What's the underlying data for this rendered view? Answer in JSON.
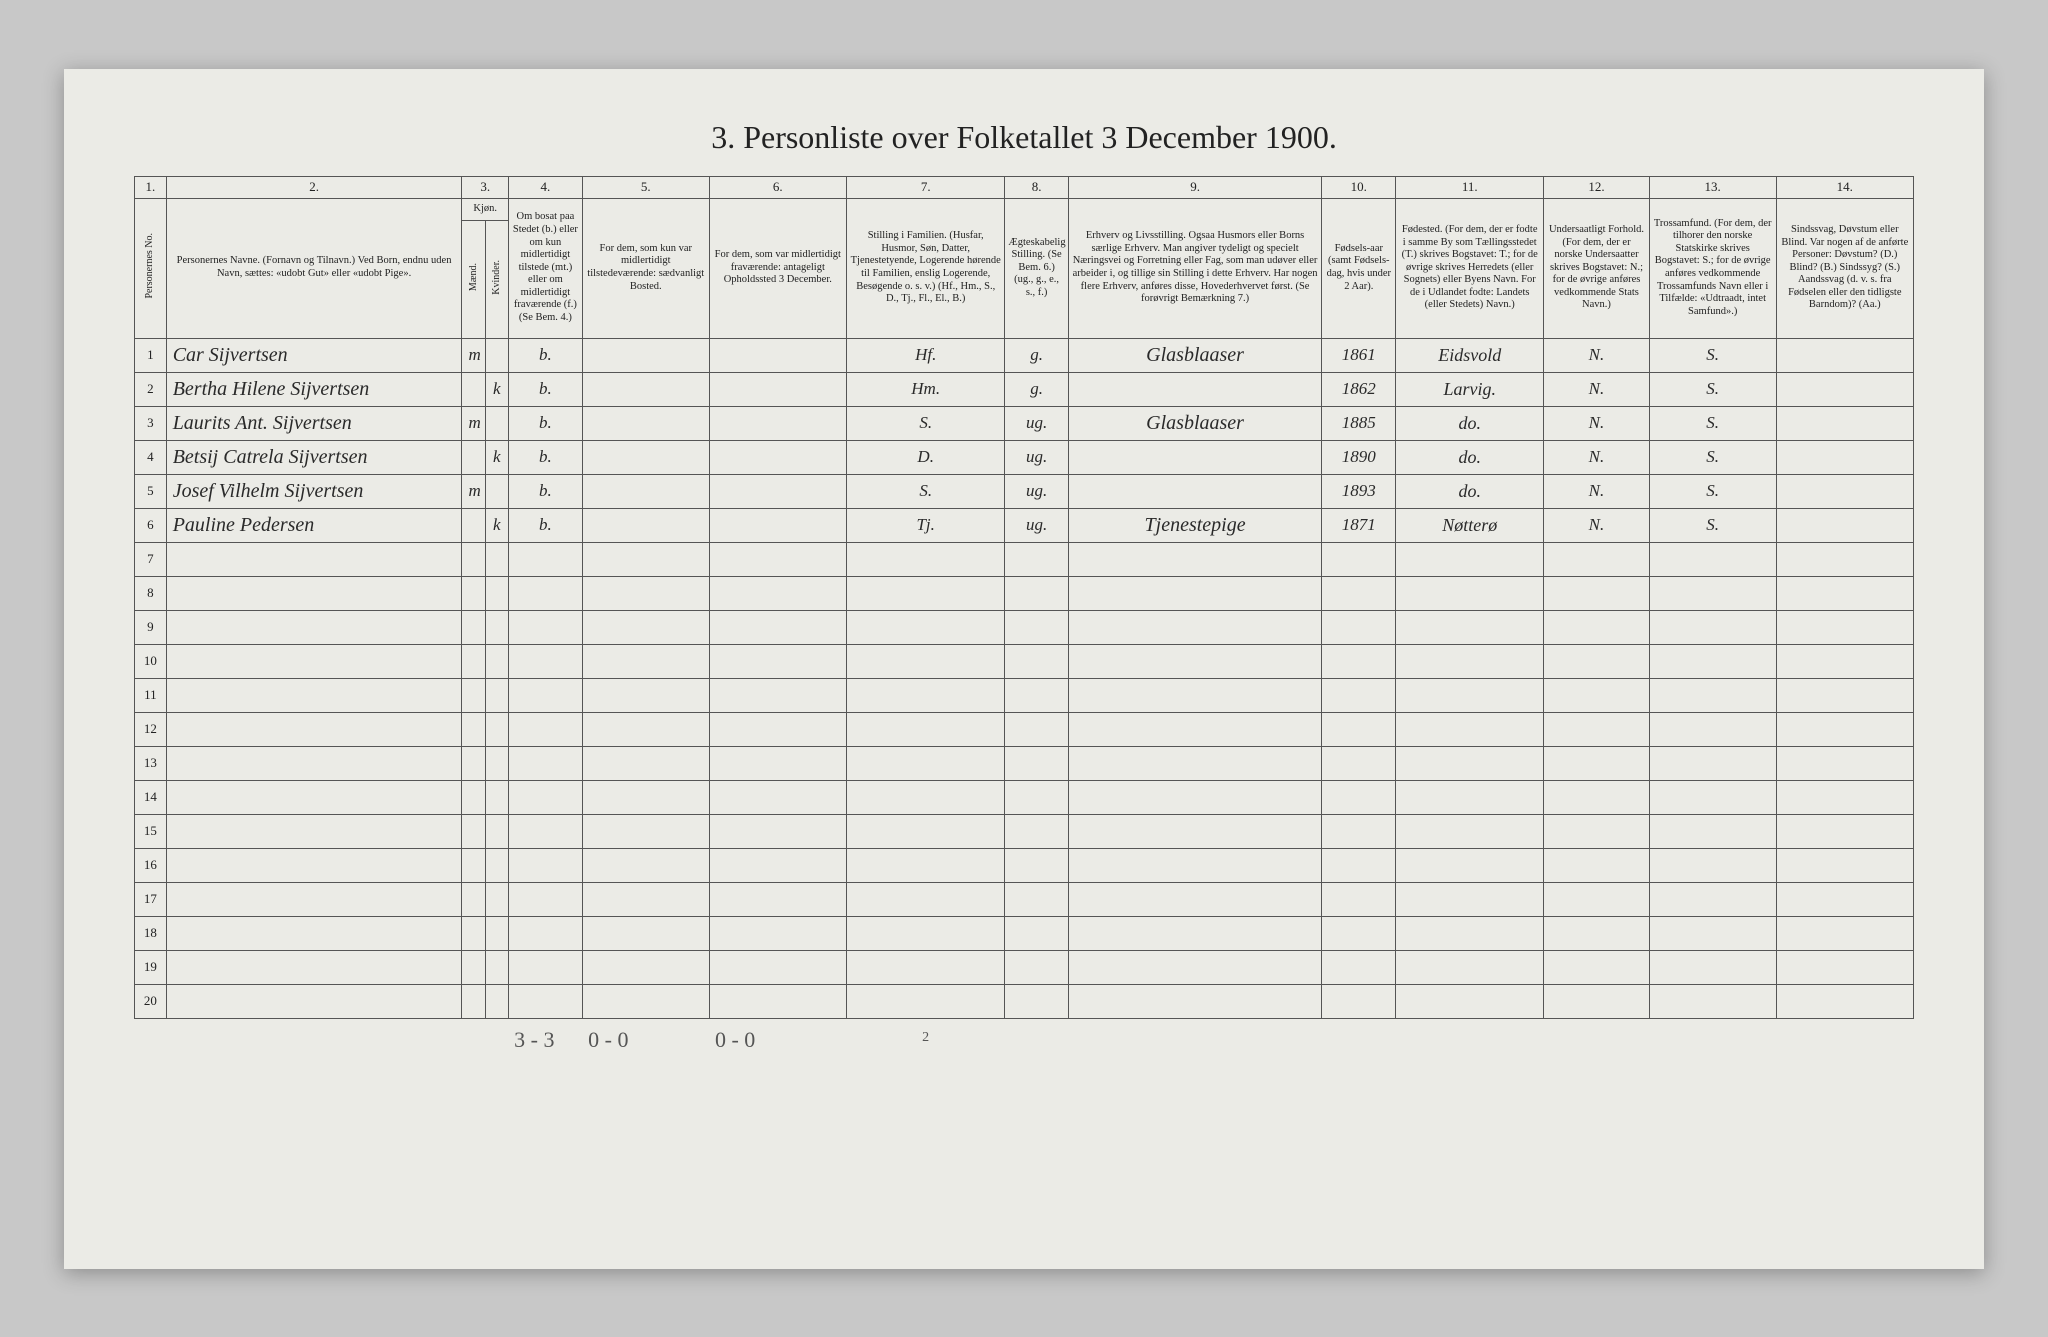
{
  "title": "3. Personliste over Folketallet 3 December 1900.",
  "page_number": "2",
  "footer_tallies": [
    "3 - 3",
    "0 - 0",
    "0 - 0"
  ],
  "column_numbers": [
    "1.",
    "2.",
    "3.",
    "4.",
    "5.",
    "6.",
    "7.",
    "8.",
    "9.",
    "10.",
    "11.",
    "12.",
    "13.",
    "14."
  ],
  "headers": {
    "person_no": "Personernes No.",
    "name": "Personernes Navne.\n(Fornavn og Tilnavn.)\nVed Born, endnu uden Navn, sættes: «udobt Gut» eller «udobt Pige».",
    "sex": "Kjøn.",
    "sex_m": "Mænd.",
    "sex_k": "Kvinder.",
    "resident": "Om bosat paa Stedet (b.) eller om kun midlertidigt tilstede (mt.) eller om midlertidigt fraværende (f.) (Se Bem. 4.)",
    "temp_present": "For dem, som kun var midlertidigt tilstedeværende:\nsædvanligt Bosted.",
    "temp_absent": "For dem, som var midlertidigt fraværende:\nantageligt Opholdssted 3 December.",
    "position": "Stilling i Familien.\n(Husfar, Husmor, Søn, Datter, Tjenestetyende, Logerende hørende til Familien, enslig Logerende, Besøgende o. s. v.)\n(Hf., Hm., S., D., Tj., Fl., El., B.)",
    "marital": "Ægteskabelig Stilling.\n(Se Bem. 6.)\n(ug., g., e., s., f.)",
    "occupation": "Erhverv og Livsstilling.\nOgsaa Husmors eller Borns særlige Erhverv. Man angiver tydeligt og specielt Næringsvei og Forretning eller Fag, som man udøver eller arbeider i, og tillige sin Stilling i dette Erhverv.\nHar nogen flere Erhverv, anføres disse, Hovederhvervet først.\n(Se forøvrigt Bemærkning 7.)",
    "birthyear": "Fødsels-aar\n(samt Fødsels-dag, hvis under 2 Aar).",
    "birthplace": "Fødested.\n(For dem, der er fodte i samme By som Tællingsstedet (T.) skrives Bogstavet: T.; for de øvrige skrives Herredets (eller Sognets) eller Byens Navn. For de i Udlandet fodte: Landets (eller Stedets) Navn.)",
    "nationality": "Undersaatligt Forhold.\n(For dem, der er norske Undersaatter skrives Bogstavet: N.; for de øvrige anføres vedkommende Stats Navn.)",
    "religion": "Trossamfund.\n(For dem, der tilhorer den norske Statskirke skrives Bogstavet: S.; for de øvrige anføres vedkommende Trossamfunds Navn eller i Tilfælde: «Udtraadt, intet Samfund».)",
    "disability": "Sindssvag, Døvstum eller Blind.\nVar nogen af de anførte Personer:\nDøvstum? (D.)\nBlind? (B.)\nSindssyg? (S.)\nAandssvag (d. v. s. fra Fødselen eller den tidligste Barndom)? (Aa.)"
  },
  "rows": [
    {
      "n": "1",
      "name": "Car Sijvertsen",
      "sex_m": "m",
      "sex_k": "",
      "res": "b.",
      "c5": "",
      "c6": "",
      "pos": "Hf.",
      "mar": "g.",
      "occ": "Glasblaaser",
      "by": "1861",
      "bp": "Eidsvold",
      "nat": "N.",
      "rel": "S.",
      "dis": ""
    },
    {
      "n": "2",
      "name": "Bertha Hilene Sijvertsen",
      "sex_m": "",
      "sex_k": "k",
      "res": "b.",
      "c5": "",
      "c6": "",
      "pos": "Hm.",
      "mar": "g.",
      "occ": "",
      "by": "1862",
      "bp": "Larvig.",
      "nat": "N.",
      "rel": "S.",
      "dis": ""
    },
    {
      "n": "3",
      "name": "Laurits Ant. Sijvertsen",
      "sex_m": "m",
      "sex_k": "",
      "res": "b.",
      "c5": "",
      "c6": "",
      "pos": "S.",
      "mar": "ug.",
      "occ": "Glasblaaser",
      "by": "1885",
      "bp": "do.",
      "nat": "N.",
      "rel": "S.",
      "dis": ""
    },
    {
      "n": "4",
      "name": "Betsij Catrela Sijvertsen",
      "sex_m": "",
      "sex_k": "k",
      "res": "b.",
      "c5": "",
      "c6": "",
      "pos": "D.",
      "mar": "ug.",
      "occ": "",
      "by": "1890",
      "bp": "do.",
      "nat": "N.",
      "rel": "S.",
      "dis": ""
    },
    {
      "n": "5",
      "name": "Josef Vilhelm Sijvertsen",
      "sex_m": "m",
      "sex_k": "",
      "res": "b.",
      "c5": "",
      "c6": "",
      "pos": "S.",
      "mar": "ug.",
      "occ": "",
      "by": "1893",
      "bp": "do.",
      "nat": "N.",
      "rel": "S.",
      "dis": ""
    },
    {
      "n": "6",
      "name": "Pauline Pedersen",
      "sex_m": "",
      "sex_k": "k",
      "res": "b.",
      "c5": "",
      "c6": "",
      "pos": "Tj.",
      "mar": "ug.",
      "occ": "Tjenestepige",
      "by": "1871",
      "bp": "Nøtterø",
      "nat": "N.",
      "rel": "S.",
      "dis": ""
    },
    {
      "n": "7",
      "name": "",
      "sex_m": "",
      "sex_k": "",
      "res": "",
      "c5": "",
      "c6": "",
      "pos": "",
      "mar": "",
      "occ": "",
      "by": "",
      "bp": "",
      "nat": "",
      "rel": "",
      "dis": ""
    },
    {
      "n": "8",
      "name": "",
      "sex_m": "",
      "sex_k": "",
      "res": "",
      "c5": "",
      "c6": "",
      "pos": "",
      "mar": "",
      "occ": "",
      "by": "",
      "bp": "",
      "nat": "",
      "rel": "",
      "dis": ""
    },
    {
      "n": "9",
      "name": "",
      "sex_m": "",
      "sex_k": "",
      "res": "",
      "c5": "",
      "c6": "",
      "pos": "",
      "mar": "",
      "occ": "",
      "by": "",
      "bp": "",
      "nat": "",
      "rel": "",
      "dis": ""
    },
    {
      "n": "10",
      "name": "",
      "sex_m": "",
      "sex_k": "",
      "res": "",
      "c5": "",
      "c6": "",
      "pos": "",
      "mar": "",
      "occ": "",
      "by": "",
      "bp": "",
      "nat": "",
      "rel": "",
      "dis": ""
    },
    {
      "n": "11",
      "name": "",
      "sex_m": "",
      "sex_k": "",
      "res": "",
      "c5": "",
      "c6": "",
      "pos": "",
      "mar": "",
      "occ": "",
      "by": "",
      "bp": "",
      "nat": "",
      "rel": "",
      "dis": ""
    },
    {
      "n": "12",
      "name": "",
      "sex_m": "",
      "sex_k": "",
      "res": "",
      "c5": "",
      "c6": "",
      "pos": "",
      "mar": "",
      "occ": "",
      "by": "",
      "bp": "",
      "nat": "",
      "rel": "",
      "dis": ""
    },
    {
      "n": "13",
      "name": "",
      "sex_m": "",
      "sex_k": "",
      "res": "",
      "c5": "",
      "c6": "",
      "pos": "",
      "mar": "",
      "occ": "",
      "by": "",
      "bp": "",
      "nat": "",
      "rel": "",
      "dis": ""
    },
    {
      "n": "14",
      "name": "",
      "sex_m": "",
      "sex_k": "",
      "res": "",
      "c5": "",
      "c6": "",
      "pos": "",
      "mar": "",
      "occ": "",
      "by": "",
      "bp": "",
      "nat": "",
      "rel": "",
      "dis": ""
    },
    {
      "n": "15",
      "name": "",
      "sex_m": "",
      "sex_k": "",
      "res": "",
      "c5": "",
      "c6": "",
      "pos": "",
      "mar": "",
      "occ": "",
      "by": "",
      "bp": "",
      "nat": "",
      "rel": "",
      "dis": ""
    },
    {
      "n": "16",
      "name": "",
      "sex_m": "",
      "sex_k": "",
      "res": "",
      "c5": "",
      "c6": "",
      "pos": "",
      "mar": "",
      "occ": "",
      "by": "",
      "bp": "",
      "nat": "",
      "rel": "",
      "dis": ""
    },
    {
      "n": "17",
      "name": "",
      "sex_m": "",
      "sex_k": "",
      "res": "",
      "c5": "",
      "c6": "",
      "pos": "",
      "mar": "",
      "occ": "",
      "by": "",
      "bp": "",
      "nat": "",
      "rel": "",
      "dis": ""
    },
    {
      "n": "18",
      "name": "",
      "sex_m": "",
      "sex_k": "",
      "res": "",
      "c5": "",
      "c6": "",
      "pos": "",
      "mar": "",
      "occ": "",
      "by": "",
      "bp": "",
      "nat": "",
      "rel": "",
      "dis": ""
    },
    {
      "n": "19",
      "name": "",
      "sex_m": "",
      "sex_k": "",
      "res": "",
      "c5": "",
      "c6": "",
      "pos": "",
      "mar": "",
      "occ": "",
      "by": "",
      "bp": "",
      "nat": "",
      "rel": "",
      "dis": ""
    },
    {
      "n": "20",
      "name": "",
      "sex_m": "",
      "sex_k": "",
      "res": "",
      "c5": "",
      "c6": "",
      "pos": "",
      "mar": "",
      "occ": "",
      "by": "",
      "bp": "",
      "nat": "",
      "rel": "",
      "dis": ""
    }
  ],
  "colors": {
    "page_bg": "#ebebe6",
    "border": "#555555",
    "text": "#222222",
    "outer_bg": "#c8c8c8"
  }
}
